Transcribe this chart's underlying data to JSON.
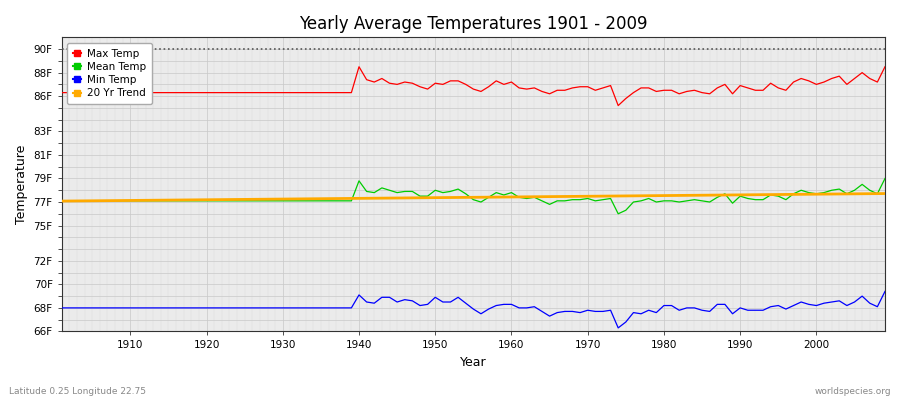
{
  "title": "Yearly Average Temperatures 1901 - 2009",
  "xlabel": "Year",
  "ylabel": "Temperature",
  "bg_color": "#f0f0f0",
  "plot_bg_color": "#e8e8e8",
  "footnote_left": "Latitude 0.25 Longitude 22.75",
  "footnote_right": "worldspecies.org",
  "legend_items": [
    "Max Temp",
    "Mean Temp",
    "Min Temp",
    "20 Yr Trend"
  ],
  "legend_colors": [
    "#ff0000",
    "#00cc00",
    "#0000ff",
    "#ffaa00"
  ],
  "ylim": [
    66,
    91
  ],
  "xlim": [
    1901,
    2009
  ],
  "ytick_positions": [
    66,
    67,
    68,
    69,
    70,
    71,
    72,
    73,
    74,
    75,
    76,
    77,
    78,
    79,
    80,
    81,
    82,
    83,
    84,
    85,
    86,
    87,
    88,
    89,
    90
  ],
  "ytick_labeled": [
    66,
    68,
    70,
    72,
    75,
    77,
    79,
    81,
    83,
    86,
    88,
    90
  ],
  "xticks": [
    1910,
    1920,
    1930,
    1940,
    1950,
    1960,
    1970,
    1980,
    1990,
    2000
  ],
  "max_temp": {
    "years_flat": [
      1901,
      1902,
      1903,
      1904,
      1905,
      1906,
      1907,
      1908,
      1909,
      1910,
      1911,
      1912,
      1913,
      1914,
      1915,
      1916,
      1917,
      1918,
      1919,
      1920,
      1921,
      1922,
      1923,
      1924,
      1925,
      1926,
      1927,
      1928,
      1929,
      1930,
      1931,
      1932,
      1933,
      1934,
      1935,
      1936,
      1937,
      1938,
      1939
    ],
    "vals_flat": [
      86.3,
      86.3,
      86.3,
      86.3,
      86.3,
      86.3,
      86.3,
      86.3,
      86.3,
      86.3,
      86.3,
      86.3,
      86.3,
      86.3,
      86.3,
      86.3,
      86.3,
      86.3,
      86.3,
      86.3,
      86.3,
      86.3,
      86.3,
      86.3,
      86.3,
      86.3,
      86.3,
      86.3,
      86.3,
      86.3,
      86.3,
      86.3,
      86.3,
      86.3,
      86.3,
      86.3,
      86.3,
      86.3,
      86.3
    ],
    "years_var": [
      1940,
      1941,
      1942,
      1943,
      1944,
      1945,
      1946,
      1947,
      1948,
      1949,
      1950,
      1951,
      1952,
      1953,
      1954,
      1955,
      1956,
      1957,
      1958,
      1959,
      1960,
      1961,
      1962,
      1963,
      1964,
      1965,
      1966,
      1967,
      1968,
      1969,
      1970,
      1971,
      1972,
      1973,
      1974,
      1975,
      1976,
      1977,
      1978,
      1979,
      1980,
      1981,
      1982,
      1983,
      1984,
      1985,
      1986,
      1987,
      1988,
      1989,
      1990,
      1991,
      1992,
      1993,
      1994,
      1995,
      1996,
      1997,
      1998,
      1999,
      2000,
      2001,
      2002,
      2003,
      2004,
      2005,
      2006,
      2007,
      2008,
      2009
    ],
    "vals_var": [
      88.5,
      87.4,
      87.2,
      87.5,
      87.1,
      87.0,
      87.2,
      87.1,
      86.8,
      86.6,
      87.1,
      87.0,
      87.3,
      87.3,
      87.0,
      86.6,
      86.4,
      86.8,
      87.3,
      87.0,
      87.2,
      86.7,
      86.6,
      86.7,
      86.4,
      86.2,
      86.5,
      86.5,
      86.7,
      86.8,
      86.8,
      86.5,
      86.7,
      86.9,
      85.2,
      85.8,
      86.3,
      86.7,
      86.7,
      86.4,
      86.5,
      86.5,
      86.2,
      86.4,
      86.5,
      86.3,
      86.2,
      86.7,
      87.0,
      86.2,
      86.9,
      86.7,
      86.5,
      86.5,
      87.1,
      86.7,
      86.5,
      87.2,
      87.5,
      87.3,
      87.0,
      87.2,
      87.5,
      87.7,
      87.0,
      87.5,
      88.0,
      87.5,
      87.2,
      88.5
    ]
  },
  "mean_temp": {
    "years_flat": [
      1901,
      1902,
      1903,
      1904,
      1905,
      1906,
      1907,
      1908,
      1909,
      1910,
      1911,
      1912,
      1913,
      1914,
      1915,
      1916,
      1917,
      1918,
      1919,
      1920,
      1921,
      1922,
      1923,
      1924,
      1925,
      1926,
      1927,
      1928,
      1929,
      1930,
      1931,
      1932,
      1933,
      1934,
      1935,
      1936,
      1937,
      1938,
      1939
    ],
    "vals_flat": [
      77.1,
      77.1,
      77.1,
      77.1,
      77.1,
      77.1,
      77.1,
      77.1,
      77.1,
      77.1,
      77.1,
      77.1,
      77.1,
      77.1,
      77.1,
      77.1,
      77.1,
      77.1,
      77.1,
      77.1,
      77.1,
      77.1,
      77.1,
      77.1,
      77.1,
      77.1,
      77.1,
      77.1,
      77.1,
      77.1,
      77.1,
      77.1,
      77.1,
      77.1,
      77.1,
      77.1,
      77.1,
      77.1,
      77.1
    ],
    "years_var": [
      1940,
      1941,
      1942,
      1943,
      1944,
      1945,
      1946,
      1947,
      1948,
      1949,
      1950,
      1951,
      1952,
      1953,
      1954,
      1955,
      1956,
      1957,
      1958,
      1959,
      1960,
      1961,
      1962,
      1963,
      1964,
      1965,
      1966,
      1967,
      1968,
      1969,
      1970,
      1971,
      1972,
      1973,
      1974,
      1975,
      1976,
      1977,
      1978,
      1979,
      1980,
      1981,
      1982,
      1983,
      1984,
      1985,
      1986,
      1987,
      1988,
      1989,
      1990,
      1991,
      1992,
      1993,
      1994,
      1995,
      1996,
      1997,
      1998,
      1999,
      2000,
      2001,
      2002,
      2003,
      2004,
      2005,
      2006,
      2007,
      2008,
      2009
    ],
    "vals_var": [
      78.8,
      77.9,
      77.8,
      78.2,
      78.0,
      77.8,
      77.9,
      77.9,
      77.5,
      77.5,
      78.0,
      77.8,
      77.9,
      78.1,
      77.7,
      77.2,
      77.0,
      77.4,
      77.8,
      77.6,
      77.8,
      77.4,
      77.3,
      77.4,
      77.1,
      76.8,
      77.1,
      77.1,
      77.2,
      77.2,
      77.3,
      77.1,
      77.2,
      77.3,
      76.0,
      76.3,
      77.0,
      77.1,
      77.3,
      77.0,
      77.1,
      77.1,
      77.0,
      77.1,
      77.2,
      77.1,
      77.0,
      77.4,
      77.7,
      76.9,
      77.5,
      77.3,
      77.2,
      77.2,
      77.6,
      77.5,
      77.2,
      77.7,
      78.0,
      77.8,
      77.7,
      77.8,
      78.0,
      78.1,
      77.7,
      78.0,
      78.5,
      78.0,
      77.7,
      79.0
    ]
  },
  "min_temp": {
    "years_flat": [
      1901,
      1902,
      1903,
      1904,
      1905,
      1906,
      1907,
      1908,
      1909,
      1910,
      1911,
      1912,
      1913,
      1914,
      1915,
      1916,
      1917,
      1918,
      1919,
      1920,
      1921,
      1922,
      1923,
      1924,
      1925,
      1926,
      1927,
      1928,
      1929,
      1930,
      1931,
      1932,
      1933,
      1934,
      1935,
      1936,
      1937,
      1938,
      1939
    ],
    "vals_flat": [
      68.0,
      68.0,
      68.0,
      68.0,
      68.0,
      68.0,
      68.0,
      68.0,
      68.0,
      68.0,
      68.0,
      68.0,
      68.0,
      68.0,
      68.0,
      68.0,
      68.0,
      68.0,
      68.0,
      68.0,
      68.0,
      68.0,
      68.0,
      68.0,
      68.0,
      68.0,
      68.0,
      68.0,
      68.0,
      68.0,
      68.0,
      68.0,
      68.0,
      68.0,
      68.0,
      68.0,
      68.0,
      68.0,
      68.0
    ],
    "years_var": [
      1940,
      1941,
      1942,
      1943,
      1944,
      1945,
      1946,
      1947,
      1948,
      1949,
      1950,
      1951,
      1952,
      1953,
      1954,
      1955,
      1956,
      1957,
      1958,
      1959,
      1960,
      1961,
      1962,
      1963,
      1964,
      1965,
      1966,
      1967,
      1968,
      1969,
      1970,
      1971,
      1972,
      1973,
      1974,
      1975,
      1976,
      1977,
      1978,
      1979,
      1980,
      1981,
      1982,
      1983,
      1984,
      1985,
      1986,
      1987,
      1988,
      1989,
      1990,
      1991,
      1992,
      1993,
      1994,
      1995,
      1996,
      1997,
      1998,
      1999,
      2000,
      2001,
      2002,
      2003,
      2004,
      2005,
      2006,
      2007,
      2008,
      2009
    ],
    "vals_var": [
      69.1,
      68.5,
      68.4,
      68.9,
      68.9,
      68.5,
      68.7,
      68.6,
      68.2,
      68.3,
      68.9,
      68.5,
      68.5,
      68.9,
      68.4,
      67.9,
      67.5,
      67.9,
      68.2,
      68.3,
      68.3,
      68.0,
      68.0,
      68.1,
      67.7,
      67.3,
      67.6,
      67.7,
      67.7,
      67.6,
      67.8,
      67.7,
      67.7,
      67.8,
      66.3,
      66.8,
      67.6,
      67.5,
      67.8,
      67.6,
      68.2,
      68.2,
      67.8,
      68.0,
      68.0,
      67.8,
      67.7,
      68.3,
      68.3,
      67.5,
      68.0,
      67.8,
      67.8,
      67.8,
      68.1,
      68.2,
      67.9,
      68.2,
      68.5,
      68.3,
      68.2,
      68.4,
      68.5,
      68.6,
      68.2,
      68.5,
      69.0,
      68.4,
      68.1,
      69.4
    ]
  }
}
